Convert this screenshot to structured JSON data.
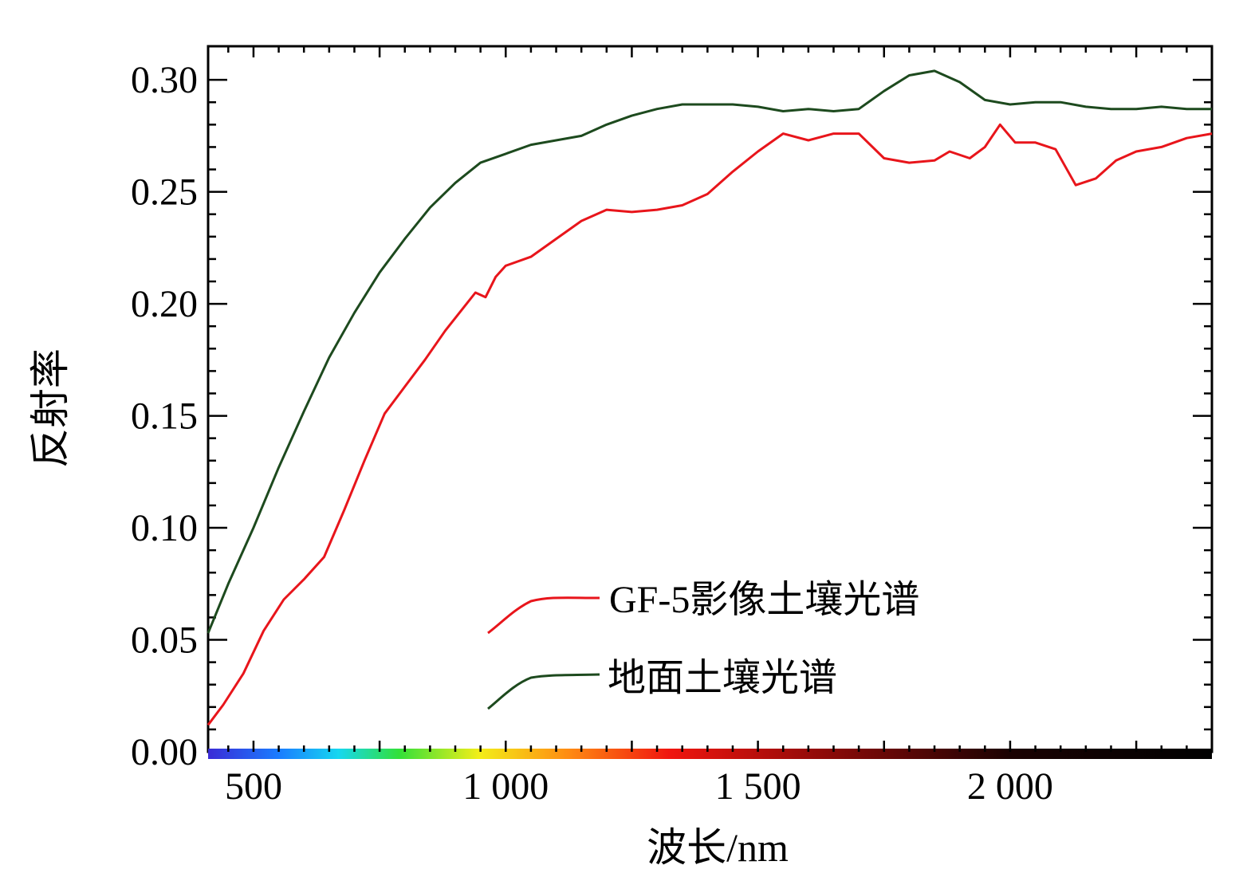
{
  "chart_data": {
    "type": "line",
    "title": "",
    "xlabel": "波长/nm",
    "ylabel": "反射率",
    "xlim": [
      410,
      2400
    ],
    "ylim": [
      0.0,
      0.315
    ],
    "x_ticks": [
      {
        "value": 500,
        "label": "500"
      },
      {
        "value": 1000,
        "label": "1 000"
      },
      {
        "value": 1500,
        "label": "1 500"
      },
      {
        "value": 2000,
        "label": "2 000"
      }
    ],
    "y_ticks": [
      {
        "value": 0.0,
        "label": "0.00"
      },
      {
        "value": 0.05,
        "label": "0.05"
      },
      {
        "value": 0.1,
        "label": "0.10"
      },
      {
        "value": 0.15,
        "label": "0.15"
      },
      {
        "value": 0.2,
        "label": "0.20"
      },
      {
        "value": 0.25,
        "label": "0.25"
      },
      {
        "value": 0.3,
        "label": "0.30"
      }
    ],
    "grid": false,
    "legend_position": "bottom-center",
    "series": [
      {
        "name": "GF-5影像土壤光谱",
        "color": "#e8151b",
        "points": [
          [
            410,
            0.012
          ],
          [
            440,
            0.021
          ],
          [
            480,
            0.035
          ],
          [
            520,
            0.054
          ],
          [
            560,
            0.068
          ],
          [
            600,
            0.077
          ],
          [
            640,
            0.087
          ],
          [
            680,
            0.108
          ],
          [
            720,
            0.13
          ],
          [
            760,
            0.151
          ],
          [
            800,
            0.163
          ],
          [
            840,
            0.175
          ],
          [
            880,
            0.188
          ],
          [
            940,
            0.205
          ],
          [
            960,
            0.203
          ],
          [
            980,
            0.212
          ],
          [
            1000,
            0.217
          ],
          [
            1050,
            0.221
          ],
          [
            1100,
            0.229
          ],
          [
            1150,
            0.237
          ],
          [
            1200,
            0.242
          ],
          [
            1250,
            0.241
          ],
          [
            1300,
            0.242
          ],
          [
            1350,
            0.244
          ],
          [
            1400,
            0.249
          ],
          [
            1450,
            0.259
          ],
          [
            1500,
            0.268
          ],
          [
            1550,
            0.276
          ],
          [
            1600,
            0.273
          ],
          [
            1650,
            0.276
          ],
          [
            1700,
            0.276
          ],
          [
            1750,
            0.265
          ],
          [
            1800,
            0.263
          ],
          [
            1850,
            0.264
          ],
          [
            1880,
            0.268
          ],
          [
            1920,
            0.265
          ],
          [
            1950,
            0.27
          ],
          [
            1980,
            0.28
          ],
          [
            2010,
            0.272
          ],
          [
            2050,
            0.272
          ],
          [
            2090,
            0.269
          ],
          [
            2130,
            0.253
          ],
          [
            2170,
            0.256
          ],
          [
            2210,
            0.264
          ],
          [
            2250,
            0.268
          ],
          [
            2300,
            0.27
          ],
          [
            2350,
            0.274
          ],
          [
            2400,
            0.276
          ]
        ]
      },
      {
        "name": "地面土壤光谱",
        "color": "#1d4a1e",
        "points": [
          [
            410,
            0.053
          ],
          [
            450,
            0.075
          ],
          [
            500,
            0.1
          ],
          [
            550,
            0.127
          ],
          [
            600,
            0.152
          ],
          [
            650,
            0.176
          ],
          [
            700,
            0.196
          ],
          [
            750,
            0.214
          ],
          [
            800,
            0.229
          ],
          [
            850,
            0.243
          ],
          [
            900,
            0.254
          ],
          [
            950,
            0.263
          ],
          [
            1000,
            0.267
          ],
          [
            1050,
            0.271
          ],
          [
            1100,
            0.273
          ],
          [
            1150,
            0.275
          ],
          [
            1200,
            0.28
          ],
          [
            1250,
            0.284
          ],
          [
            1300,
            0.287
          ],
          [
            1350,
            0.289
          ],
          [
            1400,
            0.289
          ],
          [
            1450,
            0.289
          ],
          [
            1500,
            0.288
          ],
          [
            1550,
            0.286
          ],
          [
            1600,
            0.287
          ],
          [
            1650,
            0.286
          ],
          [
            1700,
            0.287
          ],
          [
            1750,
            0.295
          ],
          [
            1800,
            0.302
          ],
          [
            1850,
            0.304
          ],
          [
            1900,
            0.299
          ],
          [
            1950,
            0.291
          ],
          [
            2000,
            0.289
          ],
          [
            2050,
            0.29
          ],
          [
            2100,
            0.29
          ],
          [
            2150,
            0.288
          ],
          [
            2200,
            0.287
          ],
          [
            2250,
            0.287
          ],
          [
            2300,
            0.288
          ],
          [
            2350,
            0.287
          ],
          [
            2400,
            0.287
          ]
        ]
      }
    ]
  }
}
